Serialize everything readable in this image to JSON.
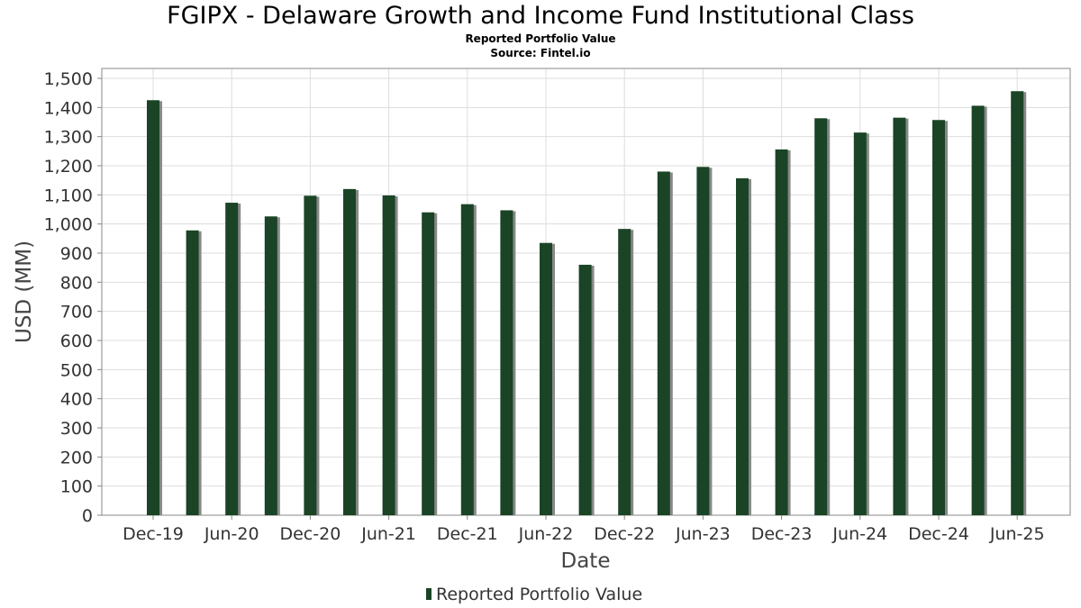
{
  "chart_data": {
    "type": "bar",
    "title": "FGIPX - Delaware Growth and Income Fund Institutional Class",
    "subtitle_lines": [
      "Reported Portfolio Value",
      "Source: Fintel.io"
    ],
    "xlabel": "Date",
    "ylabel": "USD (MM)",
    "ylim": [
      0,
      1500
    ],
    "y_ticks": [
      0,
      100,
      200,
      300,
      400,
      500,
      600,
      700,
      800,
      900,
      1000,
      1100,
      1200,
      1300,
      1400,
      1500
    ],
    "y_tick_labels": [
      "0",
      "100",
      "200",
      "300",
      "400",
      "500",
      "600",
      "700",
      "800",
      "900",
      "1,000",
      "1,100",
      "1,200",
      "1,300",
      "1,400",
      "1,500"
    ],
    "categories": [
      "Dec-19",
      "Mar-20",
      "Jun-20",
      "Sep-20",
      "Dec-20",
      "Mar-21",
      "Jun-21",
      "Sep-21",
      "Dec-21",
      "Mar-22",
      "Jun-22",
      "Sep-22",
      "Dec-22",
      "Mar-23",
      "Jun-23",
      "Sep-23",
      "Dec-23",
      "Mar-24",
      "Jun-24",
      "Sep-24",
      "Dec-24",
      "Mar-25",
      "Jun-25"
    ],
    "x_tick_labels": [
      "Dec-19",
      "Jun-20",
      "Dec-20",
      "Jun-21",
      "Dec-21",
      "Jun-22",
      "Dec-22",
      "Jun-23",
      "Dec-23",
      "Jun-24",
      "Dec-24",
      "Jun-25"
    ],
    "series": [
      {
        "name": "Reported Portfolio Value",
        "color": "#1a4425",
        "shadow_color": "#888888",
        "values": [
          1425,
          978,
          1073,
          1026,
          1097,
          1120,
          1098,
          1040,
          1068,
          1047,
          935,
          860,
          983,
          1180,
          1196,
          1157,
          1256,
          1363,
          1314,
          1365,
          1357,
          1406,
          1456
        ]
      }
    ],
    "grid": true,
    "legend_position": "bottom-center"
  }
}
